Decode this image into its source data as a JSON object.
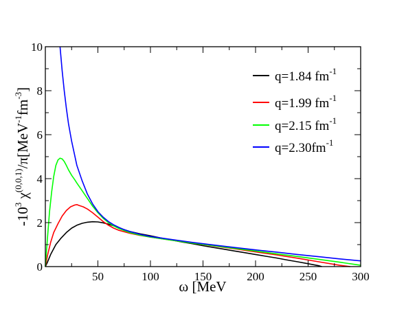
{
  "chart_data": {
    "type": "line",
    "xlabel": "ω [MeV",
    "ylabel": {
      "prefix": "-10",
      "prefix_sup": "3",
      "chi": " χ",
      "chi_sup": "(0,0,1)",
      "mid": "/π[MeV",
      "mev_sup": "-1",
      "fm": "fm",
      "fm_sup": "-3",
      "close": "]"
    },
    "xlim": [
      0,
      300
    ],
    "ylim": [
      0,
      10
    ],
    "xticks": [
      "50",
      "100",
      "150",
      "200",
      "250",
      "300"
    ],
    "yticks": [
      "0",
      "2",
      "4",
      "6",
      "8",
      "10"
    ],
    "grid": false,
    "legend_position": "top-right",
    "series": [
      {
        "name": "q=1.84 fm",
        "name_sup": "-1",
        "color": "#000000",
        "x": [
          0,
          2,
          5,
          10,
          15,
          20,
          25,
          30,
          35,
          40,
          45,
          50,
          55,
          60,
          65,
          70,
          75,
          80,
          90,
          100,
          110,
          120,
          130,
          140,
          150,
          160,
          170,
          180,
          190,
          200,
          210,
          220,
          230,
          240,
          250,
          260,
          263
        ],
        "y": [
          0.0,
          0.2,
          0.55,
          1.0,
          1.3,
          1.55,
          1.75,
          1.88,
          1.97,
          2.02,
          2.04,
          2.03,
          1.99,
          1.93,
          1.85,
          1.76,
          1.68,
          1.6,
          1.49,
          1.4,
          1.3,
          1.21,
          1.12,
          1.04,
          0.95,
          0.87,
          0.79,
          0.71,
          0.63,
          0.55,
          0.47,
          0.39,
          0.3,
          0.22,
          0.13,
          0.04,
          0.0
        ]
      },
      {
        "name": "q=1.99 fm",
        "name_sup": "-1",
        "color": "#ff0000",
        "x": [
          0,
          2,
          5,
          8,
          12,
          16,
          20,
          24,
          28,
          30,
          32,
          36,
          40,
          45,
          50,
          55,
          60,
          65,
          70,
          80,
          90,
          100,
          120,
          140,
          160,
          180,
          200,
          220,
          240,
          260,
          280,
          290
        ],
        "y": [
          0.0,
          0.5,
          1.1,
          1.55,
          1.95,
          2.3,
          2.55,
          2.72,
          2.8,
          2.82,
          2.78,
          2.72,
          2.62,
          2.45,
          2.25,
          2.05,
          1.88,
          1.75,
          1.65,
          1.52,
          1.42,
          1.34,
          1.2,
          1.07,
          0.94,
          0.81,
          0.67,
          0.53,
          0.38,
          0.22,
          0.06,
          0.0
        ]
      },
      {
        "name": "q=2.15 fm",
        "name_sup": "-1",
        "color": "#00ff00",
        "x": [
          0,
          2,
          4,
          6,
          8,
          10,
          12,
          14,
          16,
          18,
          20,
          22,
          25,
          28,
          30,
          35,
          40,
          45,
          50,
          55,
          60,
          65,
          70,
          80,
          90,
          100,
          120,
          140,
          160,
          180,
          200,
          220,
          240,
          260,
          280,
          300
        ],
        "y": [
          0.0,
          1.3,
          2.5,
          3.4,
          4.1,
          4.6,
          4.85,
          4.93,
          4.9,
          4.78,
          4.6,
          4.4,
          4.15,
          3.95,
          3.8,
          3.45,
          3.1,
          2.75,
          2.45,
          2.2,
          2.0,
          1.85,
          1.73,
          1.55,
          1.43,
          1.34,
          1.2,
          1.07,
          0.95,
          0.83,
          0.71,
          0.58,
          0.46,
          0.33,
          0.2,
          0.06
        ]
      },
      {
        "name": "q=2.30fm",
        "name_sup": "-1",
        "color": "#0000ff",
        "x": [
          14,
          16,
          18,
          20,
          22,
          25,
          28,
          30,
          35,
          40,
          45,
          50,
          55,
          60,
          65,
          70,
          75,
          80,
          90,
          100,
          120,
          140,
          160,
          180,
          200,
          220,
          240,
          260,
          280,
          300
        ],
        "y": [
          10.0,
          8.9,
          8.0,
          7.2,
          6.5,
          5.7,
          5.05,
          4.6,
          3.9,
          3.3,
          2.85,
          2.5,
          2.25,
          2.05,
          1.9,
          1.78,
          1.68,
          1.6,
          1.47,
          1.37,
          1.23,
          1.1,
          0.98,
          0.87,
          0.76,
          0.66,
          0.55,
          0.45,
          0.35,
          0.26
        ]
      }
    ]
  }
}
